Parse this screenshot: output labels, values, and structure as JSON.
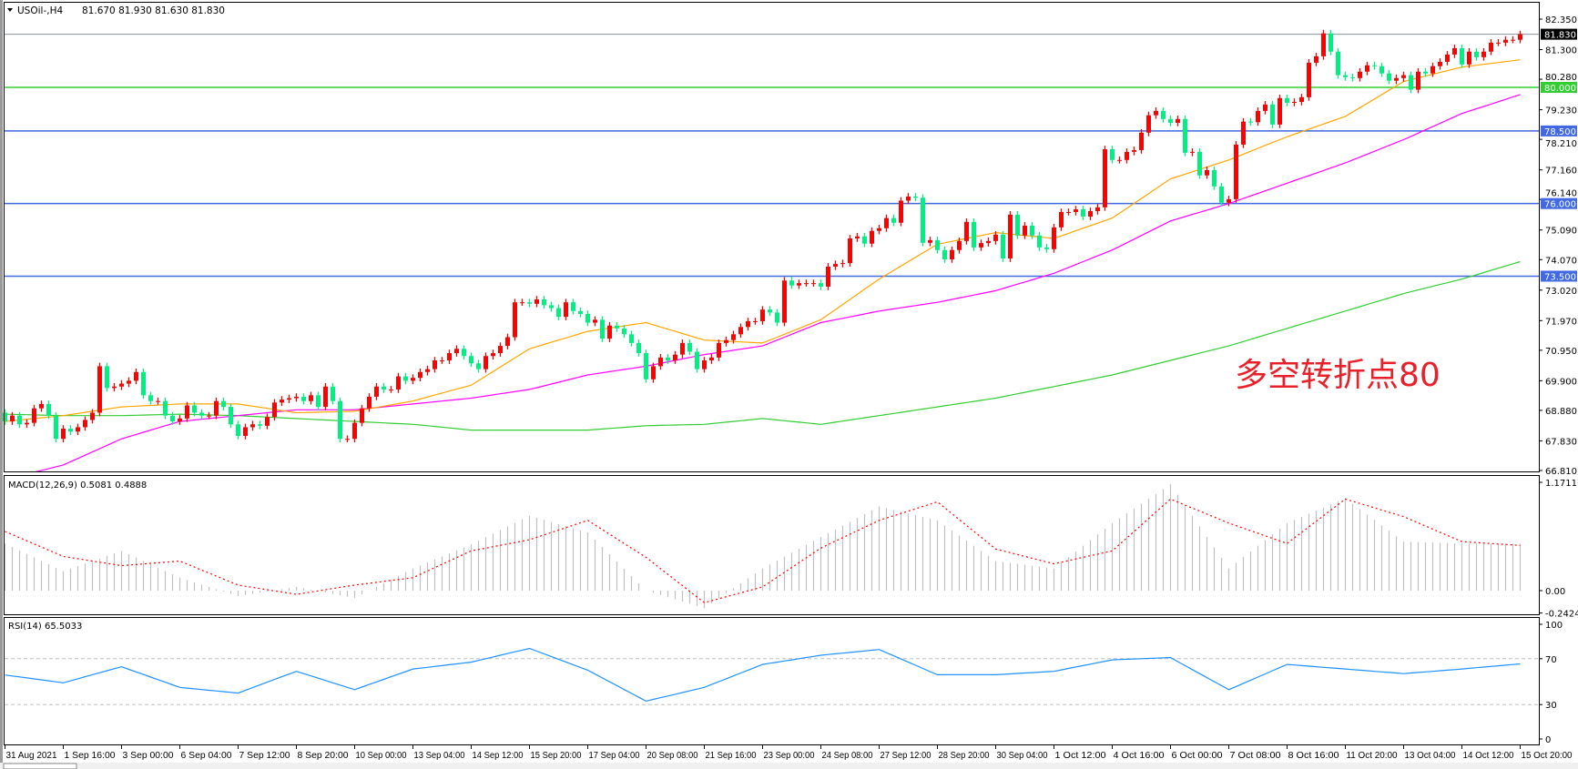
{
  "header": {
    "symbol_label": "USOil-,H4",
    "ohlc_text": "81.670 81.930 81.630 81.830",
    "menu_icon": "triangle-down-icon"
  },
  "annotation": {
    "text": "多空转折点80",
    "color": "#e8202a"
  },
  "colors": {
    "up_candle": "#ff0000",
    "down_candle": "#00f080",
    "ma_fast": "#ffa500",
    "ma_mid": "#ff00ff",
    "ma_slow": "#32cd32",
    "level_green": "#32cd32",
    "level_blue": "#4169e1",
    "macd_hist": "#c0c0c0",
    "macd_signal": "#ff0000",
    "rsi": "#1e90ff"
  },
  "price_axis": {
    "ticks": [
      "82.350",
      "81.300",
      "80.280",
      "79.230",
      "78.210",
      "77.160",
      "76.140",
      "75.090",
      "74.070",
      "73.020",
      "71.970",
      "70.950",
      "69.900",
      "68.880",
      "67.830",
      "66.810"
    ],
    "current_price": "81.830",
    "levels": [
      {
        "label": "80.000",
        "value": 80.0,
        "color": "#32cd32"
      },
      {
        "label": "78.500",
        "value": 78.5,
        "color": "#4169e1"
      },
      {
        "label": "76.000",
        "value": 76.0,
        "color": "#4169e1"
      },
      {
        "label": "73.500",
        "value": 73.5,
        "color": "#4169e1"
      }
    ]
  },
  "time_axis": {
    "labels": [
      "31 Aug 2021",
      "1 Sep 16:00",
      "3 Sep 00:00",
      "6 Sep 04:00",
      "7 Sep 12:00",
      "8 Sep 20:00",
      "10 Sep 00:00",
      "13 Sep 04:00",
      "14 Sep 12:00",
      "15 Sep 20:00",
      "17 Sep 04:00",
      "20 Sep 08:00",
      "21 Sep 16:00",
      "23 Sep 00:00",
      "24 Sep 08:00",
      "27 Sep 12:00",
      "28 Sep 20:00",
      "30 Sep 04:00",
      "1 Oct 12:00",
      "4 Oct 16:00",
      "6 Oct 00:00",
      "7 Oct 08:00",
      "8 Oct 16:00",
      "11 Oct 20:00",
      "13 Oct 04:00",
      "14 Oct 12:00",
      "15 Oct 20:00"
    ]
  },
  "macd": {
    "title": "MACD(12,26,9) 0.5081 0.4888",
    "axis_ticks": [
      "1.1711",
      "0.00",
      "-0.2424"
    ]
  },
  "rsi": {
    "title": "RSI(14) 65.5033",
    "axis_ticks": [
      "100",
      "70",
      "30",
      "0"
    ]
  },
  "chart_data": [
    {
      "type": "candlestick",
      "timeframe": "H4",
      "ylim": [
        66.81,
        82.35
      ],
      "first_open": 68.8,
      "close": [
        68.5,
        68.7,
        68.4,
        68.45,
        68.95,
        69.1,
        68.7,
        67.9,
        68.25,
        68.15,
        68.3,
        68.55,
        68.8,
        70.4,
        69.65,
        69.7,
        69.8,
        69.9,
        70.2,
        69.4,
        69.2,
        69.2,
        68.7,
        68.5,
        68.6,
        69.05,
        68.8,
        68.7,
        68.7,
        69.2,
        69.0,
        68.4,
        68.0,
        68.3,
        68.4,
        68.35,
        68.65,
        69.15,
        69.25,
        69.3,
        69.35,
        69.2,
        69.4,
        69.0,
        69.7,
        69.2,
        67.9,
        67.9,
        68.45,
        68.95,
        69.35,
        69.7,
        69.6,
        69.6,
        70.05,
        69.9,
        70.0,
        70.2,
        70.3,
        70.6,
        70.6,
        70.85,
        71.0,
        70.75,
        70.5,
        70.3,
        70.75,
        70.85,
        71.1,
        71.4,
        72.6,
        72.6,
        72.55,
        72.7,
        72.5,
        72.4,
        72.1,
        72.6,
        72.3,
        72.2,
        71.9,
        72.0,
        71.35,
        71.8,
        71.7,
        71.5,
        71.2,
        70.85,
        69.95,
        70.4,
        70.7,
        70.6,
        70.8,
        71.2,
        70.9,
        70.3,
        70.6,
        70.7,
        71.2,
        71.3,
        71.5,
        71.75,
        71.95,
        71.95,
        72.35,
        72.25,
        71.9,
        73.35,
        73.18,
        73.26,
        73.26,
        73.26,
        73.14,
        73.83,
        73.92,
        73.95,
        74.8,
        74.87,
        74.62,
        75.06,
        75.15,
        75.5,
        75.34,
        76.1,
        76.24,
        76.2,
        74.65,
        74.74,
        74.4,
        74.08,
        74.4,
        74.71,
        75.37,
        74.49,
        74.64,
        74.71,
        74.93,
        74.11,
        75.62,
        74.9,
        75.24,
        74.9,
        74.49,
        74.43,
        75.18,
        75.71,
        75.71,
        75.8,
        75.55,
        75.74,
        75.87,
        77.87,
        77.5,
        77.5,
        77.78,
        77.84,
        78.44,
        79.04,
        79.19,
        78.91,
        78.78,
        78.91,
        77.75,
        77.78,
        76.97,
        77.15,
        76.59,
        76.03,
        76.15,
        78.03,
        78.82,
        78.8,
        79.19,
        79.41,
        78.72,
        79.63,
        79.47,
        79.5,
        79.66,
        80.85,
        81.07,
        81.86,
        81.23,
        80.42,
        80.35,
        80.32,
        80.54,
        80.76,
        80.73,
        80.48,
        80.23,
        80.32,
        80.42,
        79.92,
        80.54,
        80.48,
        80.73,
        80.88,
        81.13,
        81.35,
        80.79,
        81.23,
        81.04,
        81.23,
        81.54,
        81.54,
        81.64,
        81.64,
        81.83
      ],
      "moving_averages_at_time_labels": {
        "fast": [
          68.5,
          68.7,
          69.0,
          69.1,
          69.1,
          68.8,
          68.85,
          69.2,
          69.75,
          71.0,
          71.6,
          71.9,
          71.3,
          71.2,
          72.0,
          73.4,
          74.6,
          75.0,
          74.8,
          75.5,
          76.85,
          77.5,
          78.3,
          79.0,
          80.2,
          80.7,
          80.95
        ],
        "mid": [
          66.5,
          67.0,
          67.9,
          68.5,
          68.7,
          68.9,
          68.9,
          69.1,
          69.3,
          69.6,
          70.1,
          70.4,
          70.8,
          71.1,
          71.9,
          72.3,
          72.6,
          73.0,
          73.6,
          74.4,
          75.4,
          76.0,
          76.7,
          77.4,
          78.2,
          79.1,
          79.75
        ],
        "slow": [
          68.75,
          68.7,
          68.7,
          68.75,
          68.7,
          68.6,
          68.5,
          68.4,
          68.2,
          68.2,
          68.2,
          68.35,
          68.4,
          68.6,
          68.4,
          68.7,
          69.0,
          69.3,
          69.7,
          70.1,
          70.6,
          71.1,
          71.7,
          72.3,
          72.9,
          73.4,
          74.0
        ]
      }
    },
    {
      "type": "bar+line",
      "name": "MACD(12,26,9)",
      "ylim": [
        -0.2424,
        1.1711
      ],
      "histogram_at_time_labels": [
        0.51,
        0.21,
        0.43,
        0.14,
        -0.06,
        0.04,
        -0.08,
        0.24,
        0.5,
        0.81,
        0.63,
        0.0,
        -0.19,
        0.24,
        0.58,
        0.91,
        0.76,
        0.32,
        0.24,
        0.73,
        1.15,
        0.24,
        0.73,
        1.0,
        0.53,
        0.51,
        0.5081
      ],
      "signal_at_time_labels": [
        0.64,
        0.37,
        0.27,
        0.32,
        0.06,
        -0.04,
        0.06,
        0.14,
        0.43,
        0.55,
        0.76,
        0.36,
        -0.13,
        0.04,
        0.46,
        0.76,
        0.96,
        0.45,
        0.29,
        0.43,
        0.99,
        0.73,
        0.51,
        0.99,
        0.8,
        0.53,
        0.4888
      ]
    },
    {
      "type": "line",
      "name": "RSI(14)",
      "ylim": [
        0,
        100
      ],
      "levels": [
        70,
        30
      ],
      "values_at_time_labels": [
        55.8,
        49,
        63,
        45,
        40,
        59,
        43,
        61,
        67,
        79,
        60,
        33,
        45,
        65,
        73,
        78,
        56,
        56,
        59,
        69,
        71,
        43,
        65,
        61,
        57,
        61,
        65.5
      ]
    }
  ]
}
